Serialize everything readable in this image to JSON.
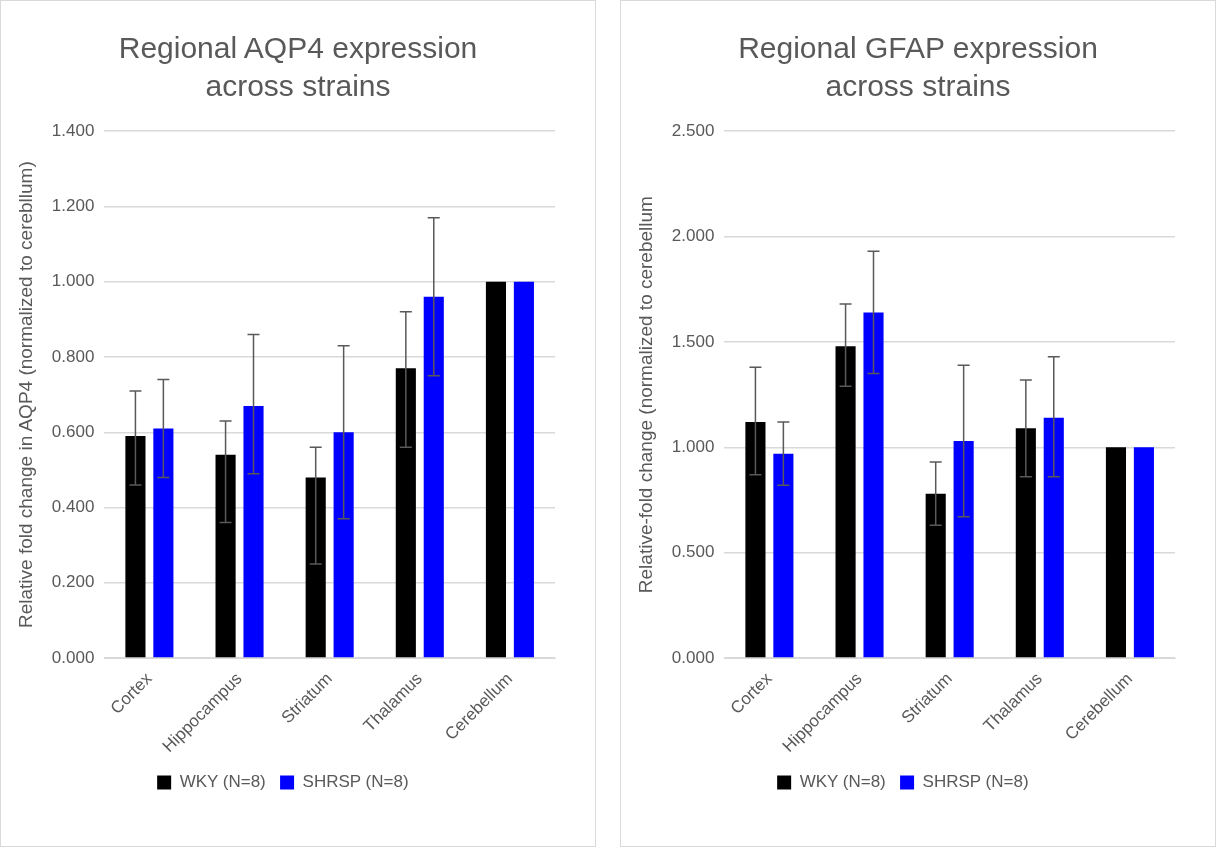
{
  "chart_data": [
    {
      "type": "bar",
      "title": "Regional AQP4 expression across strains",
      "ylabel": "Relative fold change in AQP4 (normalized to cerebllum)",
      "categories": [
        "Cortex",
        "Hippocampus",
        "Striatum",
        "Thalamus",
        "Cerebellum"
      ],
      "series": [
        {
          "name": "WKY (N=8)",
          "color": "#000000",
          "values": [
            0.59,
            0.54,
            0.48,
            0.77,
            1.0
          ],
          "errors": [
            [
              0.46,
              0.71
            ],
            [
              0.36,
              0.63
            ],
            [
              0.25,
              0.56
            ],
            [
              0.56,
              0.92
            ],
            null
          ]
        },
        {
          "name": "SHRSP (N=8)",
          "color": "#0000ff",
          "values": [
            0.61,
            0.67,
            0.6,
            0.96,
            1.0
          ],
          "errors": [
            [
              0.48,
              0.74
            ],
            [
              0.49,
              0.86
            ],
            [
              0.37,
              0.83
            ],
            [
              0.75,
              1.17
            ],
            null
          ]
        }
      ],
      "ylim": [
        0,
        1.4
      ],
      "yticks": [
        {
          "value": 0,
          "label": "0.000"
        },
        {
          "value": 0.2,
          "label": "0.200"
        },
        {
          "value": 0.4,
          "label": "0.400"
        },
        {
          "value": 0.6,
          "label": "0.600"
        },
        {
          "value": 0.8,
          "label": "0.800"
        },
        {
          "value": 1.0,
          "label": "1.000"
        },
        {
          "value": 1.2,
          "label": "1.200"
        },
        {
          "value": 1.4,
          "label": "1.400"
        }
      ],
      "grid": "y",
      "legend": "bottom"
    },
    {
      "type": "bar",
      "title": "Regional GFAP expression across strains",
      "ylabel": "Relative-fold change (normalized to cerebellum",
      "categories": [
        "Cortex",
        "Hippocampus",
        "Striatum",
        "Thalamus",
        "Cerebellum"
      ],
      "series": [
        {
          "name": "WKY (N=8)",
          "color": "#000000",
          "values": [
            1.12,
            1.48,
            0.78,
            1.09,
            1.0
          ],
          "errors": [
            [
              0.87,
              1.38
            ],
            [
              1.29,
              1.68
            ],
            [
              0.63,
              0.93
            ],
            [
              0.86,
              1.32
            ],
            null
          ]
        },
        {
          "name": "SHRSP (N=8)",
          "color": "#0000ff",
          "values": [
            0.97,
            1.64,
            1.03,
            1.14,
            1.0
          ],
          "errors": [
            [
              0.82,
              1.12
            ],
            [
              1.35,
              1.93
            ],
            [
              0.67,
              1.39
            ],
            [
              0.86,
              1.43
            ],
            null
          ]
        }
      ],
      "ylim": [
        0,
        2.5
      ],
      "yticks": [
        {
          "value": 0,
          "label": "0.000"
        },
        {
          "value": 0.5,
          "label": "0.500"
        },
        {
          "value": 1.0,
          "label": "1.000"
        },
        {
          "value": 1.5,
          "label": "1.500"
        },
        {
          "value": 2.0,
          "label": "2.000"
        },
        {
          "value": 2.5,
          "label": "2.500"
        }
      ],
      "grid": "y",
      "legend": "bottom"
    }
  ]
}
